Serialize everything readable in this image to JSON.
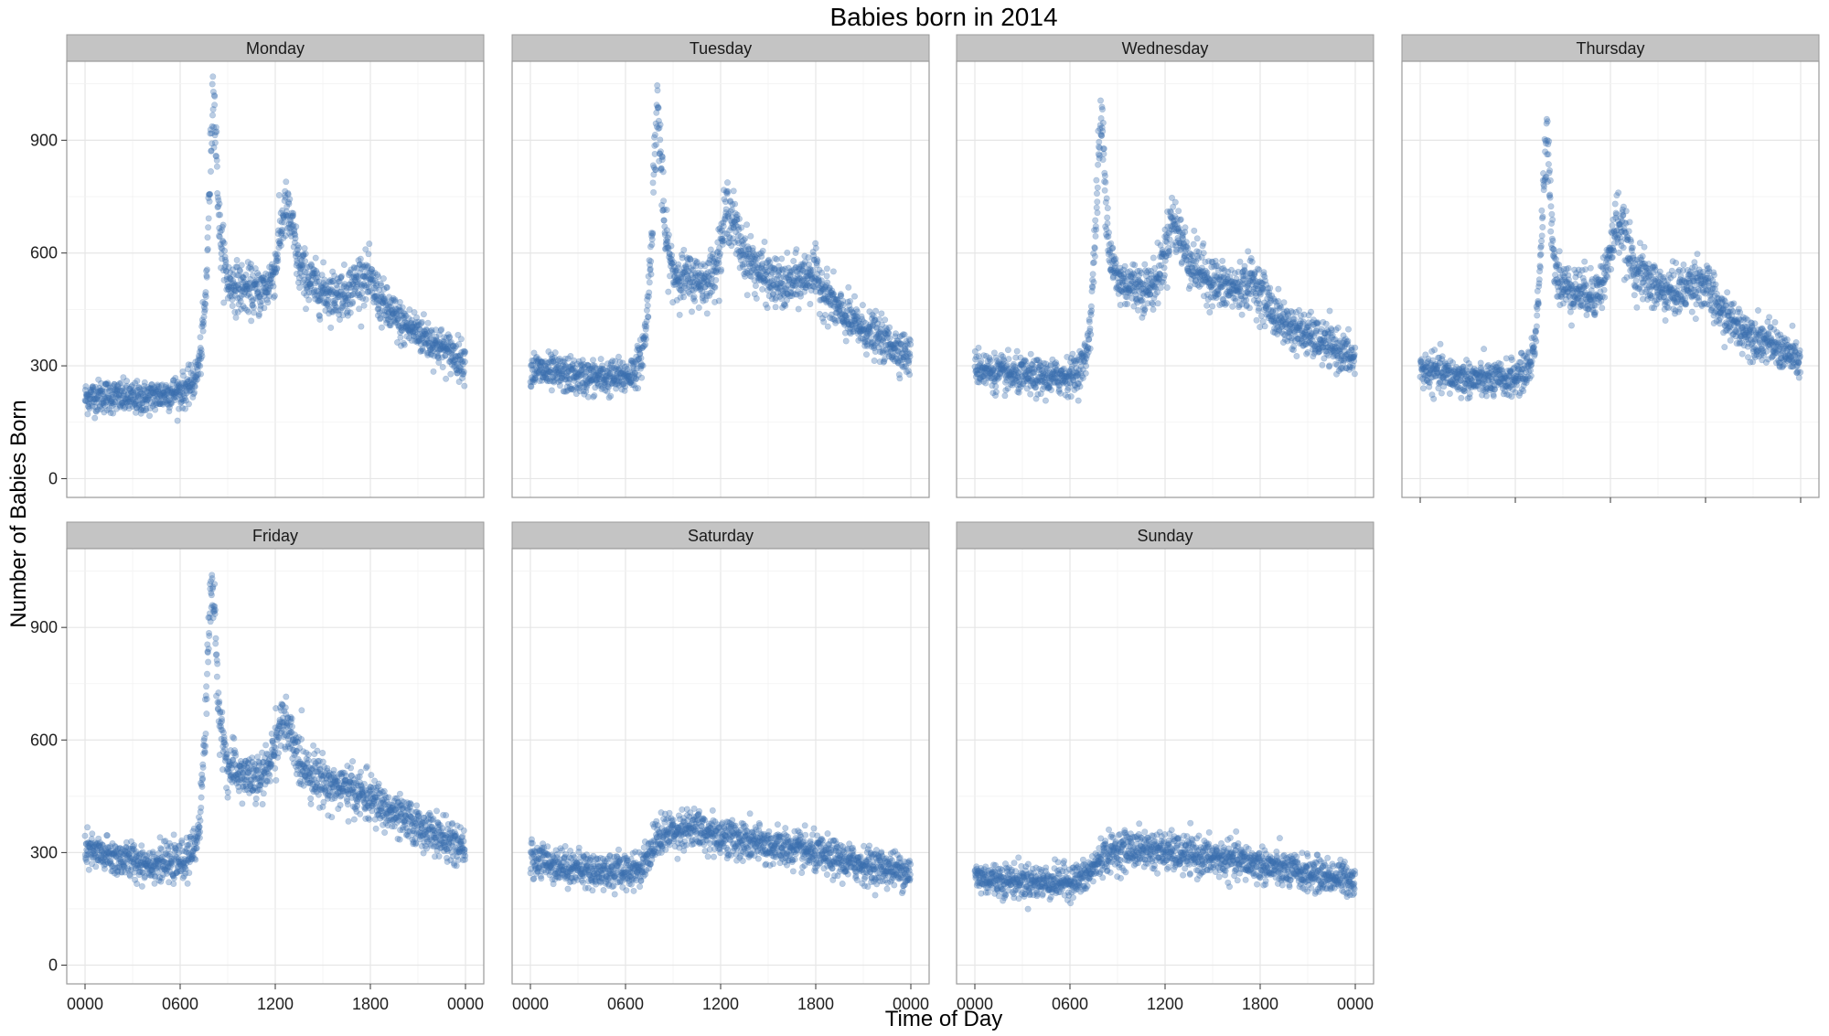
{
  "chart_data": {
    "type": "scatter",
    "title": "Babies born in 2014",
    "xlabel": "Time of Day",
    "ylabel": "Number of Babies Born",
    "x_ticks": [
      "0000",
      "0600",
      "1200",
      "1800",
      "0000"
    ],
    "y_ticks": [
      0,
      300,
      600,
      900
    ],
    "ylim": [
      -50,
      1110
    ],
    "grid": true,
    "point_color": "#3b6faf",
    "point_opacity": 0.35,
    "strip_fill": "#c4c4c4",
    "panel_border": "#9a9a9a",
    "panels": [
      {
        "name": "Monday",
        "series": [
          [
            0,
            215
          ],
          [
            1,
            220
          ],
          [
            2,
            218
          ],
          [
            3,
            212
          ],
          [
            4,
            216
          ],
          [
            5,
            225
          ],
          [
            6,
            232
          ],
          [
            6.5,
            240
          ],
          [
            7,
            270
          ],
          [
            7.3,
            330
          ],
          [
            7.6,
            470
          ],
          [
            7.8,
            700
          ],
          [
            8,
            960
          ],
          [
            8.1,
            1060
          ],
          [
            8.3,
            850
          ],
          [
            8.5,
            650
          ],
          [
            9,
            520
          ],
          [
            10,
            505
          ],
          [
            11,
            495
          ],
          [
            11.5,
            510
          ],
          [
            12,
            560
          ],
          [
            12.3,
            650
          ],
          [
            12.6,
            715
          ],
          [
            13,
            680
          ],
          [
            13.5,
            560
          ],
          [
            14.5,
            510
          ],
          [
            15.5,
            490
          ],
          [
            16.5,
            495
          ],
          [
            17.5,
            540
          ],
          [
            18,
            520
          ],
          [
            19,
            450
          ],
          [
            20,
            410
          ],
          [
            21,
            390
          ],
          [
            22,
            360
          ],
          [
            23,
            335
          ],
          [
            24,
            310
          ]
        ]
      },
      {
        "name": "Tuesday",
        "series": [
          [
            0,
            292
          ],
          [
            1,
            283
          ],
          [
            2,
            276
          ],
          [
            3,
            271
          ],
          [
            4,
            268
          ],
          [
            5,
            268
          ],
          [
            6,
            272
          ],
          [
            6.5,
            285
          ],
          [
            7,
            320
          ],
          [
            7.3,
            400
          ],
          [
            7.6,
            600
          ],
          [
            7.8,
            820
          ],
          [
            8.0,
            1000
          ],
          [
            8.2,
            870
          ],
          [
            8.5,
            640
          ],
          [
            9,
            545
          ],
          [
            10,
            530
          ],
          [
            11,
            525
          ],
          [
            11.5,
            545
          ],
          [
            12,
            620
          ],
          [
            12.4,
            720
          ],
          [
            12.7,
            700
          ],
          [
            13.2,
            620
          ],
          [
            14,
            570
          ],
          [
            15,
            530
          ],
          [
            16,
            510
          ],
          [
            17,
            530
          ],
          [
            17.8,
            550
          ],
          [
            18.5,
            500
          ],
          [
            19.5,
            440
          ],
          [
            20.5,
            410
          ],
          [
            21.5,
            385
          ],
          [
            22.5,
            360
          ],
          [
            23.3,
            345
          ],
          [
            24,
            320
          ]
        ]
      },
      {
        "name": "Wednesday",
        "series": [
          [
            0,
            300
          ],
          [
            1,
            285
          ],
          [
            2,
            275
          ],
          [
            3,
            272
          ],
          [
            4,
            268
          ],
          [
            5,
            268
          ],
          [
            6,
            275
          ],
          [
            6.5,
            285
          ],
          [
            7,
            320
          ],
          [
            7.3,
            420
          ],
          [
            7.6,
            650
          ],
          [
            7.8,
            850
          ],
          [
            8.0,
            960
          ],
          [
            8.2,
            800
          ],
          [
            8.5,
            600
          ],
          [
            9,
            525
          ],
          [
            10,
            515
          ],
          [
            11,
            505
          ],
          [
            11.5,
            530
          ],
          [
            12,
            600
          ],
          [
            12.4,
            690
          ],
          [
            12.8,
            660
          ],
          [
            13.5,
            580
          ],
          [
            14.5,
            540
          ],
          [
            15.5,
            510
          ],
          [
            16.5,
            505
          ],
          [
            17.5,
            525
          ],
          [
            18.3,
            480
          ],
          [
            19,
            430
          ],
          [
            20,
            400
          ],
          [
            21,
            380
          ],
          [
            22,
            360
          ],
          [
            23,
            340
          ],
          [
            24,
            315
          ]
        ]
      },
      {
        "name": "Thursday",
        "series": [
          [
            0,
            290
          ],
          [
            1,
            282
          ],
          [
            2,
            272
          ],
          [
            3,
            266
          ],
          [
            4,
            262
          ],
          [
            5,
            262
          ],
          [
            6,
            268
          ],
          [
            6.5,
            280
          ],
          [
            7,
            310
          ],
          [
            7.3,
            390
          ],
          [
            7.6,
            600
          ],
          [
            7.8,
            780
          ],
          [
            8.0,
            900
          ],
          [
            8.2,
            750
          ],
          [
            8.5,
            560
          ],
          [
            9,
            510
          ],
          [
            10,
            500
          ],
          [
            11,
            490
          ],
          [
            11.5,
            520
          ],
          [
            12,
            600
          ],
          [
            12.4,
            690
          ],
          [
            12.8,
            650
          ],
          [
            13.5,
            560
          ],
          [
            14.5,
            520
          ],
          [
            15.5,
            495
          ],
          [
            16.5,
            500
          ],
          [
            17.5,
            530
          ],
          [
            18.2,
            500
          ],
          [
            19,
            440
          ],
          [
            20,
            405
          ],
          [
            21,
            380
          ],
          [
            22,
            360
          ],
          [
            23,
            335
          ],
          [
            24,
            310
          ]
        ]
      },
      {
        "name": "Friday",
        "series": [
          [
            0,
            305
          ],
          [
            1,
            295
          ],
          [
            2,
            285
          ],
          [
            3,
            278
          ],
          [
            4,
            272
          ],
          [
            5,
            270
          ],
          [
            6,
            274
          ],
          [
            6.5,
            285
          ],
          [
            7,
            320
          ],
          [
            7.3,
            420
          ],
          [
            7.6,
            650
          ],
          [
            7.8,
            880
          ],
          [
            8.0,
            1050
          ],
          [
            8.2,
            880
          ],
          [
            8.5,
            650
          ],
          [
            9,
            525
          ],
          [
            10,
            505
          ],
          [
            11,
            490
          ],
          [
            11.5,
            520
          ],
          [
            12,
            590
          ],
          [
            12.4,
            655
          ],
          [
            12.8,
            620
          ],
          [
            13.5,
            545
          ],
          [
            14.5,
            505
          ],
          [
            15.5,
            480
          ],
          [
            16.5,
            470
          ],
          [
            17.5,
            455
          ],
          [
            18.5,
            430
          ],
          [
            19.5,
            400
          ],
          [
            20.5,
            380
          ],
          [
            21.5,
            360
          ],
          [
            22.5,
            340
          ],
          [
            23.3,
            320
          ],
          [
            24,
            305
          ]
        ]
      },
      {
        "name": "Saturday",
        "series": [
          [
            0,
            285
          ],
          [
            1,
            275
          ],
          [
            2,
            265
          ],
          [
            3,
            258
          ],
          [
            4,
            252
          ],
          [
            5,
            250
          ],
          [
            6,
            252
          ],
          [
            6.5,
            255
          ],
          [
            7,
            260
          ],
          [
            7.5,
            300
          ],
          [
            8,
            340
          ],
          [
            9,
            360
          ],
          [
            10,
            365
          ],
          [
            11,
            355
          ],
          [
            12,
            345
          ],
          [
            13,
            335
          ],
          [
            14,
            325
          ],
          [
            15,
            318
          ],
          [
            16,
            312
          ],
          [
            17,
            305
          ],
          [
            18,
            295
          ],
          [
            19,
            285
          ],
          [
            20,
            275
          ],
          [
            21,
            268
          ],
          [
            22,
            262
          ],
          [
            23,
            255
          ],
          [
            24,
            248
          ]
        ]
      },
      {
        "name": "Sunday",
        "series": [
          [
            0,
            235
          ],
          [
            1,
            230
          ],
          [
            2,
            227
          ],
          [
            3,
            224
          ],
          [
            4,
            222
          ],
          [
            5,
            222
          ],
          [
            6,
            224
          ],
          [
            6.5,
            228
          ],
          [
            7,
            235
          ],
          [
            7.5,
            260
          ],
          [
            8,
            290
          ],
          [
            9,
            305
          ],
          [
            10,
            310
          ],
          [
            11,
            308
          ],
          [
            12,
            302
          ],
          [
            13,
            295
          ],
          [
            14,
            290
          ],
          [
            15,
            285
          ],
          [
            16,
            280
          ],
          [
            17,
            275
          ],
          [
            18,
            268
          ],
          [
            19,
            258
          ],
          [
            20,
            250
          ],
          [
            21,
            243
          ],
          [
            22,
            238
          ],
          [
            23,
            233
          ],
          [
            24,
            228
          ]
        ]
      }
    ]
  }
}
